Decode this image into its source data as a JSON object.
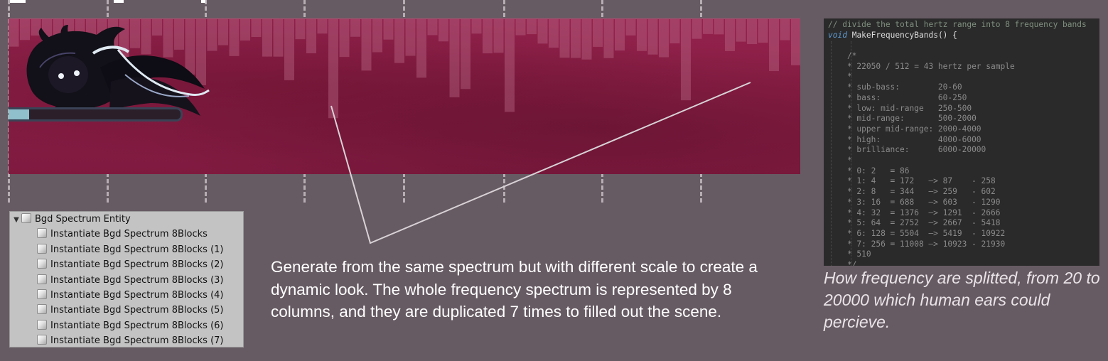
{
  "hierarchy": {
    "root": "Bgd Spectrum Entity",
    "children": [
      "Instantiate Bgd Spectrum 8Blocks",
      "Instantiate Bgd Spectrum 8Blocks (1)",
      "Instantiate Bgd Spectrum 8Blocks (2)",
      "Instantiate Bgd Spectrum 8Blocks (3)",
      "Instantiate Bgd Spectrum 8Blocks (4)",
      "Instantiate Bgd Spectrum 8Blocks (5)",
      "Instantiate Bgd Spectrum 8Blocks (6)",
      "Instantiate Bgd Spectrum 8Blocks (7)"
    ]
  },
  "caption": "Generate from the same spectrum but with different scale to create a dynamic look. The whole frequency spectrum is represented by 8 columns, and they are duplicated 7 times to filled out the scene.",
  "code": {
    "comment": "// divide the total hertz range into 8 frequency bands",
    "keyword": "void",
    "signature": "MakeFrequencyBands() {",
    "body": [
      "    /*",
      "    * 22050 / 512 = 43 hertz per sample",
      "    *",
      "    * sub-bass:        20-60",
      "    * bass:            60-250",
      "    * low: mid-range   250-500",
      "    * mid-range:       500-2000",
      "    * upper mid-range: 2000-4000",
      "    * high:            4000-6000",
      "    * brilliance:      6000-20000",
      "    *",
      "    * 0: 2   = 86",
      "    * 1: 4   = 172   —> 87    - 258",
      "    * 2: 8   = 344   —> 259   - 602",
      "    * 3: 16  = 688   —> 603   - 1290",
      "    * 4: 32  = 1376  —> 1291  - 2666",
      "    * 5: 64  = 2752  —> 2667  - 5418",
      "    * 6: 128 = 5504  —> 5419  - 10922",
      "    * 7: 256 = 11008 —> 10923 - 21930",
      "    * 510",
      "    */"
    ]
  },
  "note": "How frequency are splitted, from 20 to 20000 which human ears could percieve.",
  "scene": {
    "progress": 0.12,
    "colors": {
      "background": "#8a1e45",
      "bars": "#c06e8c",
      "progress_fill": "#8fc0cc"
    }
  }
}
